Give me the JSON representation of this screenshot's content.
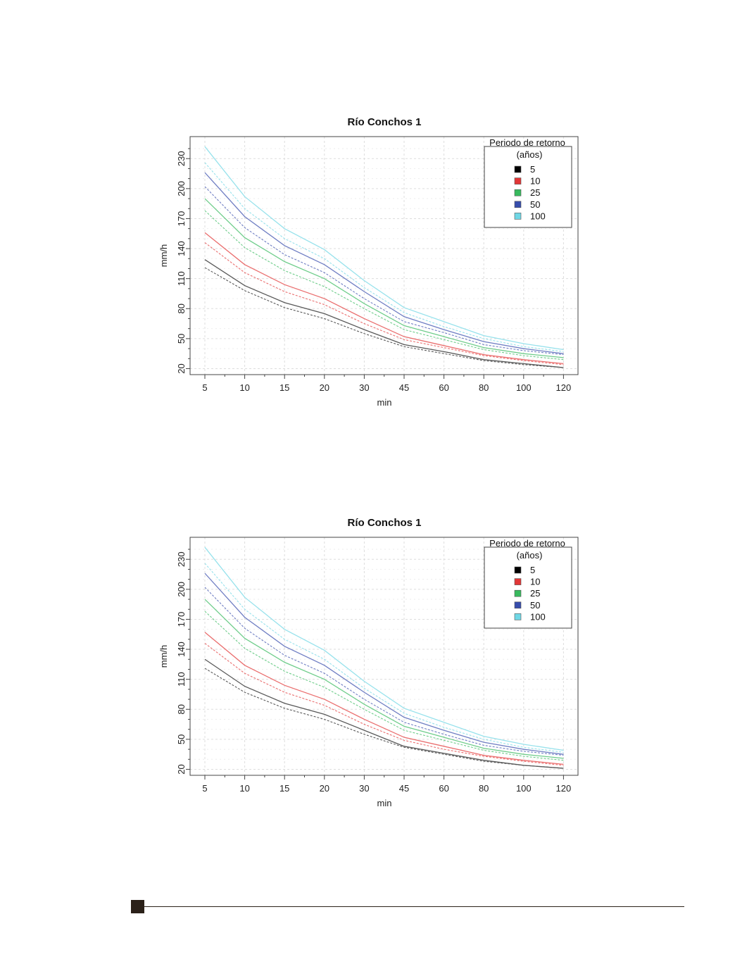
{
  "chart_data": [
    {
      "type": "line",
      "title": "Río Conchos 1",
      "xlabel": "min",
      "ylabel": "mm/h",
      "categories": [
        "5",
        "10",
        "15",
        "20",
        "30",
        "45",
        "60",
        "80",
        "100",
        "120"
      ],
      "yticks": [
        "20",
        "50",
        "80",
        "110",
        "140",
        "170",
        "200",
        "230"
      ],
      "ylim": [
        14,
        252
      ],
      "grid": true,
      "legend": {
        "title_line1": "Periodo de retorno",
        "title_line2": "(años)",
        "position": "top-right"
      },
      "series": [
        {
          "name": "5",
          "color": "#000000",
          "solid": [
            129,
            103,
            86,
            75,
            59,
            44,
            37,
            29,
            25,
            21
          ],
          "dashed": [
            121,
            98,
            81,
            70,
            55,
            42,
            35,
            28,
            24,
            21
          ]
        },
        {
          "name": "10",
          "color": "#df2020",
          "solid": [
            156,
            124,
            104,
            90,
            70,
            52,
            43,
            34,
            29,
            25
          ],
          "dashed": [
            146,
            116,
            97,
            84,
            65,
            49,
            41,
            33,
            28,
            24
          ]
        },
        {
          "name": "25",
          "color": "#22b24c",
          "solid": [
            190,
            151,
            127,
            110,
            85,
            63,
            52,
            41,
            35,
            31
          ],
          "dashed": [
            178,
            141,
            118,
            102,
            80,
            59,
            49,
            39,
            33,
            29
          ]
        },
        {
          "name": "50",
          "color": "#2139a3",
          "solid": [
            216,
            172,
            143,
            124,
            97,
            72,
            59,
            47,
            40,
            35
          ],
          "dashed": [
            202,
            161,
            134,
            116,
            90,
            67,
            56,
            44,
            38,
            34
          ]
        },
        {
          "name": "100",
          "color": "#5fd3e2",
          "solid": [
            242,
            192,
            160,
            139,
            108,
            81,
            67,
            53,
            45,
            39
          ],
          "dashed": [
            226,
            180,
            150,
            130,
            101,
            76,
            62,
            50,
            42,
            37
          ]
        }
      ]
    },
    {
      "type": "line",
      "title": "Río Conchos 1",
      "xlabel": "min",
      "ylabel": "mm/h",
      "categories": [
        "5",
        "10",
        "15",
        "20",
        "30",
        "45",
        "60",
        "80",
        "100",
        "120"
      ],
      "yticks": [
        "20",
        "50",
        "80",
        "110",
        "140",
        "170",
        "200",
        "230"
      ],
      "ylim": [
        14,
        252
      ],
      "grid": true,
      "legend": {
        "title_line1": "Periodo de retorno",
        "title_line2": "(años)",
        "position": "top-right"
      },
      "series": [
        {
          "name": "5",
          "color": "#000000",
          "solid": [
            130,
            103,
            86,
            75,
            59,
            43,
            36,
            29,
            24,
            21
          ],
          "dashed": [
            121,
            97,
            81,
            70,
            55,
            42,
            35,
            28,
            24,
            21
          ]
        },
        {
          "name": "10",
          "color": "#df2020",
          "solid": [
            157,
            124,
            104,
            90,
            70,
            52,
            43,
            34,
            29,
            25
          ],
          "dashed": [
            146,
            116,
            97,
            84,
            65,
            49,
            40,
            33,
            28,
            24
          ]
        },
        {
          "name": "25",
          "color": "#22b24c",
          "solid": [
            190,
            151,
            127,
            110,
            85,
            63,
            52,
            41,
            35,
            31
          ],
          "dashed": [
            178,
            141,
            118,
            102,
            80,
            59,
            49,
            39,
            33,
            29
          ]
        },
        {
          "name": "50",
          "color": "#2139a3",
          "solid": [
            216,
            172,
            143,
            124,
            97,
            72,
            59,
            47,
            40,
            35
          ],
          "dashed": [
            202,
            161,
            134,
            116,
            90,
            67,
            55,
            44,
            38,
            34
          ]
        },
        {
          "name": "100",
          "color": "#5fd3e2",
          "solid": [
            242,
            192,
            160,
            139,
            108,
            81,
            67,
            53,
            45,
            39
          ],
          "dashed": [
            226,
            180,
            150,
            130,
            101,
            76,
            62,
            50,
            42,
            37
          ]
        }
      ]
    }
  ]
}
